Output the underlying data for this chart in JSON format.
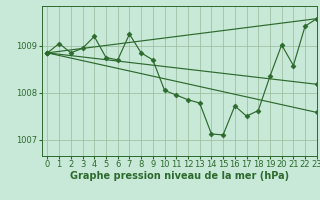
{
  "bg_color": "#c8e8d8",
  "grid_color": "#99bb99",
  "line_color": "#2d6a2d",
  "xlabel": "Graphe pression niveau de la mer (hPa)",
  "ylim": [
    1006.65,
    1009.85
  ],
  "xlim": [
    -0.5,
    23
  ],
  "yticks": [
    1007,
    1008,
    1009
  ],
  "xticks": [
    0,
    1,
    2,
    3,
    4,
    5,
    6,
    7,
    8,
    9,
    10,
    11,
    12,
    13,
    14,
    15,
    16,
    17,
    18,
    19,
    20,
    21,
    22,
    23
  ],
  "lines": [
    {
      "x": [
        0,
        1,
        2,
        3,
        4,
        5,
        6,
        7,
        8,
        9,
        10,
        11,
        12,
        13,
        14,
        15,
        16,
        17,
        18,
        19,
        20,
        21,
        22,
        23
      ],
      "y": [
        1008.85,
        1009.05,
        1008.85,
        1008.95,
        1009.2,
        1008.75,
        1008.7,
        1009.25,
        1008.85,
        1008.7,
        1008.05,
        1007.95,
        1007.85,
        1007.78,
        1007.12,
        1007.1,
        1007.72,
        1007.5,
        1007.62,
        1008.35,
        1009.02,
        1008.58,
        1009.42,
        1009.58
      ],
      "has_markers": true
    },
    {
      "x": [
        0,
        23
      ],
      "y": [
        1008.85,
        1009.58
      ],
      "has_markers": true
    },
    {
      "x": [
        0,
        23
      ],
      "y": [
        1008.85,
        1008.18
      ],
      "has_markers": true
    },
    {
      "x": [
        0,
        23
      ],
      "y": [
        1008.85,
        1007.58
      ],
      "has_markers": true
    }
  ],
  "marker": "D",
  "marker_size": 2.5,
  "linewidth": 0.85,
  "xlabel_fontsize": 7,
  "tick_fontsize": 6,
  "xlabel_color": "#2d6a2d",
  "tick_color": "#2d6a2d",
  "spine_color": "#2d6a2d"
}
